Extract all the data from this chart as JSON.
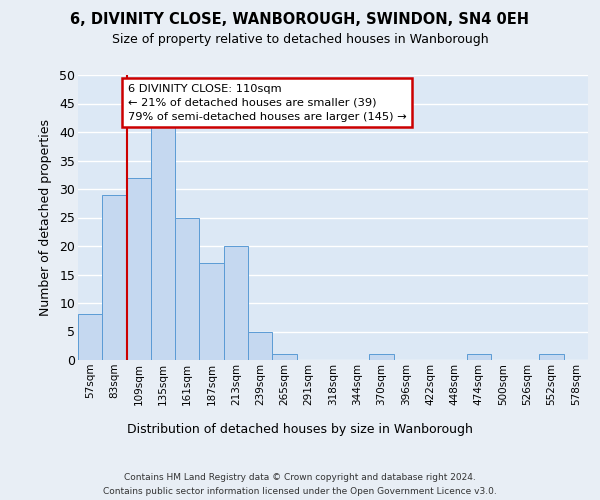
{
  "title_line1": "6, DIVINITY CLOSE, WANBOROUGH, SWINDON, SN4 0EH",
  "title_line2": "Size of property relative to detached houses in Wanborough",
  "xlabel": "Distribution of detached houses by size in Wanborough",
  "ylabel": "Number of detached properties",
  "categories": [
    "57sqm",
    "83sqm",
    "109sqm",
    "135sqm",
    "161sqm",
    "187sqm",
    "213sqm",
    "239sqm",
    "265sqm",
    "291sqm",
    "318sqm",
    "344sqm",
    "370sqm",
    "396sqm",
    "422sqm",
    "448sqm",
    "474sqm",
    "500sqm",
    "526sqm",
    "552sqm",
    "578sqm"
  ],
  "values": [
    8,
    29,
    32,
    41,
    25,
    17,
    20,
    5,
    1,
    0,
    0,
    0,
    1,
    0,
    0,
    0,
    1,
    0,
    0,
    1,
    0
  ],
  "bar_color": "#c5d8f0",
  "bar_edge_color": "#5b9bd5",
  "background_color": "#e8eef5",
  "plot_bg_color": "#dce8f5",
  "grid_color": "#ffffff",
  "annotation_text": "6 DIVINITY CLOSE: 110sqm\n← 21% of detached houses are smaller (39)\n79% of semi-detached houses are larger (145) →",
  "annotation_box_color": "#ffffff",
  "annotation_box_edge": "#cc0000",
  "property_line_x": 1.5,
  "property_line_color": "#cc0000",
  "ylim": [
    0,
    50
  ],
  "yticks": [
    0,
    5,
    10,
    15,
    20,
    25,
    30,
    35,
    40,
    45,
    50
  ],
  "footnote1": "Contains HM Land Registry data © Crown copyright and database right 2024.",
  "footnote2": "Contains public sector information licensed under the Open Government Licence v3.0."
}
